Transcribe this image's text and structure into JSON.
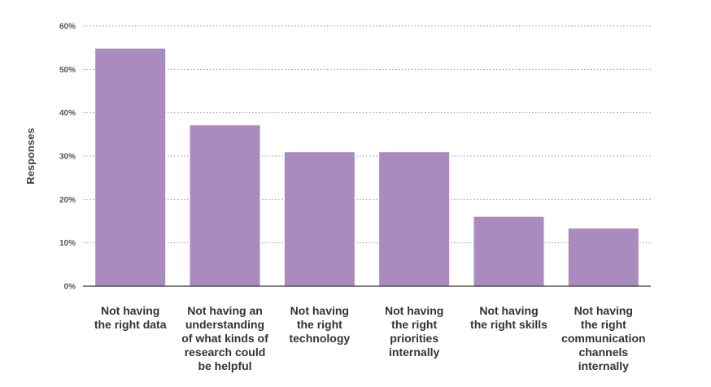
{
  "chart_data": {
    "type": "bar",
    "ylabel": "Responses",
    "ylim": [
      0,
      60
    ],
    "yticks": [
      "0%",
      "10%",
      "20%",
      "30%",
      "40%",
      "50%",
      "60%"
    ],
    "grid": "horizontal dotted",
    "bar_color": "#a98bbf",
    "categories": [
      "Not having\nthe right data",
      "Not having an\nunderstanding\nof what kinds of\nresearch could\nbe helpful",
      "Not having\nthe right\ntechnology",
      "Not having\nthe right\npriorities\ninternally",
      "Not having\nthe right skills",
      "Not having\nthe right\ncommunication\nchannels internally"
    ],
    "values": [
      54.8,
      37.1,
      30.9,
      30.9,
      16.0,
      13.3
    ]
  }
}
